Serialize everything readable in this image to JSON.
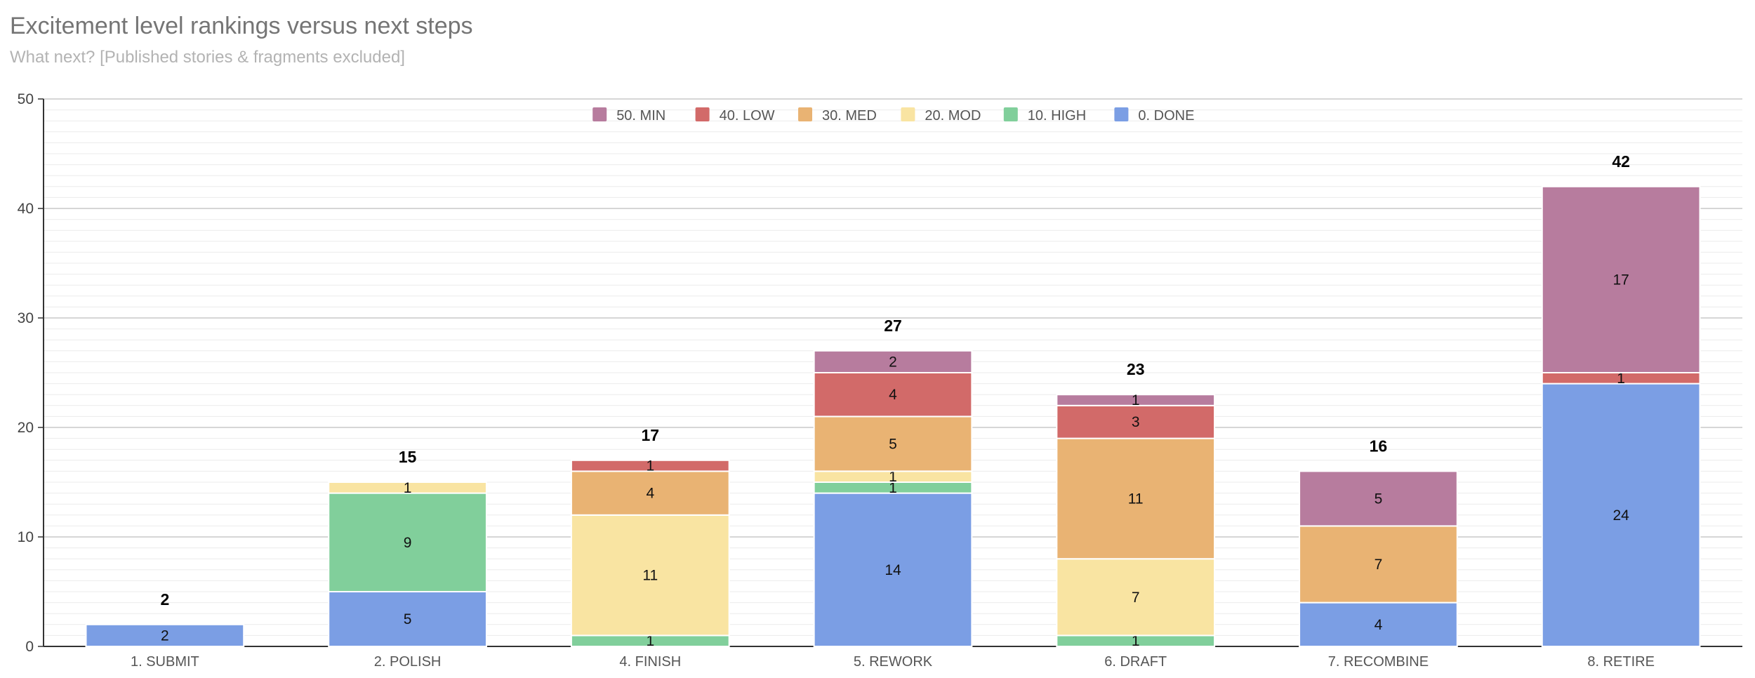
{
  "title": "Excitement level rankings versus next steps",
  "subtitle": "What next? [Published stories & fragments excluded]",
  "chart_data": {
    "type": "bar",
    "stacked": true,
    "title": "Excitement level rankings versus next steps",
    "subtitle": "What next? [Published stories & fragments excluded]",
    "xlabel": "",
    "ylabel": "",
    "ylim": [
      0,
      50
    ],
    "y_ticks": [
      0,
      10,
      20,
      30,
      40,
      50
    ],
    "grid": true,
    "legend_position": "top",
    "categories": [
      "1. SUBMIT",
      "2. POLISH",
      "4. FINISH",
      "5. REWORK",
      "6. DRAFT",
      "7. RECOMBINE",
      "8. RETIRE"
    ],
    "totals": [
      2,
      15,
      17,
      27,
      23,
      16,
      42
    ],
    "series": [
      {
        "name": "0. DONE",
        "color": "#7b9ee4",
        "values": [
          2,
          5,
          null,
          14,
          null,
          4,
          24
        ]
      },
      {
        "name": "10. HIGH",
        "color": "#81cf9b",
        "values": [
          null,
          9,
          1,
          1,
          1,
          null,
          null
        ]
      },
      {
        "name": "20. MOD",
        "color": "#f9e4a2",
        "values": [
          null,
          1,
          11,
          1,
          7,
          null,
          null
        ]
      },
      {
        "name": "30. MED",
        "color": "#e9b373",
        "values": [
          null,
          null,
          4,
          5,
          11,
          7,
          null
        ]
      },
      {
        "name": "40. LOW",
        "color": "#d26a69",
        "values": [
          null,
          null,
          1,
          4,
          3,
          null,
          1
        ]
      },
      {
        "name": "50. MIN",
        "color": "#b77c9e",
        "values": [
          null,
          null,
          null,
          2,
          1,
          5,
          17
        ]
      }
    ],
    "legend_order": [
      "50. MIN",
      "40. LOW",
      "30. MED",
      "20. MOD",
      "10. HIGH",
      "0. DONE"
    ]
  }
}
